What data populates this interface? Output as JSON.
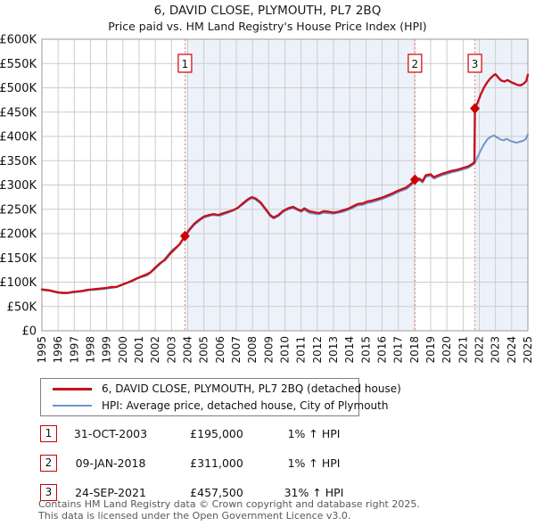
{
  "header": {
    "title": "6, DAVID CLOSE, PLYMOUTH, PL7 2BQ",
    "subtitle": "Price paid vs. HM Land Registry's House Price Index (HPI)"
  },
  "chart_data": {
    "type": "line",
    "title": "6, DAVID CLOSE, PLYMOUTH, PL7 2BQ",
    "subtitle": "Price paid vs. HM Land Registry's House Price Index (HPI)",
    "y_unit": "GBP thousands",
    "x_axis": {
      "min": 1995,
      "max": 2025,
      "tick_step": 1,
      "labels": [
        "1995",
        "1996",
        "1997",
        "1998",
        "1999",
        "2000",
        "2001",
        "2002",
        "2003",
        "2004",
        "2005",
        "2006",
        "2007",
        "2008",
        "2009",
        "2010",
        "2011",
        "2012",
        "2013",
        "2014",
        "2015",
        "2016",
        "2017",
        "2018",
        "2019",
        "2020",
        "2021",
        "2022",
        "2023",
        "2024",
        "2025"
      ]
    },
    "y_axis": {
      "min": 0,
      "max": 600,
      "tick_step": 50,
      "labels": [
        "£0",
        "£50K",
        "£100K",
        "£150K",
        "£200K",
        "£250K",
        "£300K",
        "£350K",
        "£400K",
        "£450K",
        "£500K",
        "£550K",
        "£600K"
      ]
    },
    "grid": true,
    "grid_color": "#cccccc",
    "border_color": "#9a9a9a",
    "shade_color": "#edf2fa",
    "marker_line_color": "#ee7777",
    "background_spans": [
      [
        2003.83,
        2018.03
      ],
      [
        2021.73,
        2025
      ]
    ],
    "sale_markers": [
      {
        "n": "1",
        "x": 2003.83,
        "y": 195
      },
      {
        "n": "2",
        "x": 2018.03,
        "y": 311
      },
      {
        "n": "3",
        "x": 2021.73,
        "y": 457.5
      }
    ],
    "series": [
      {
        "name": "HPI: Average price, detached house, City of Plymouth",
        "color": "#6e96c8",
        "width": 2,
        "points": [
          [
            1995,
            84
          ],
          [
            1995.5,
            82
          ],
          [
            1996,
            78
          ],
          [
            1996.5,
            77
          ],
          [
            1997,
            79
          ],
          [
            1997.5,
            81
          ],
          [
            1998,
            84
          ],
          [
            1998.5,
            85
          ],
          [
            1999,
            87
          ],
          [
            1999.5,
            89
          ],
          [
            2000,
            96
          ],
          [
            2000.5,
            101
          ],
          [
            2001,
            109
          ],
          [
            2001.5,
            114
          ],
          [
            2002,
            128
          ],
          [
            2002.5,
            144
          ],
          [
            2003,
            165
          ],
          [
            2003.5,
            177
          ],
          [
            2003.83,
            193
          ],
          [
            2004.1,
            206
          ],
          [
            2004.4,
            218
          ],
          [
            2004.7,
            226
          ],
          [
            2005,
            233
          ],
          [
            2005.5,
            238
          ],
          [
            2006,
            237
          ],
          [
            2006.5,
            243
          ],
          [
            2007,
            251
          ],
          [
            2007.4,
            260
          ],
          [
            2007.7,
            268
          ],
          [
            2007.95,
            273
          ],
          [
            2008.2,
            270
          ],
          [
            2008.5,
            262
          ],
          [
            2008.8,
            249
          ],
          [
            2009.1,
            236
          ],
          [
            2009.3,
            231
          ],
          [
            2009.6,
            236
          ],
          [
            2009.9,
            245
          ],
          [
            2010.2,
            250
          ],
          [
            2010.5,
            253
          ],
          [
            2010.8,
            248
          ],
          [
            2011,
            245
          ],
          [
            2011.2,
            249
          ],
          [
            2011.5,
            243
          ],
          [
            2011.8,
            241
          ],
          [
            2012.1,
            240
          ],
          [
            2012.4,
            243
          ],
          [
            2012.7,
            242
          ],
          [
            2013,
            241
          ],
          [
            2013.3,
            243
          ],
          [
            2013.6,
            245
          ],
          [
            2013.9,
            249
          ],
          [
            2014.2,
            253
          ],
          [
            2014.5,
            258
          ],
          [
            2014.8,
            259
          ],
          [
            2015.1,
            263
          ],
          [
            2015.4,
            265
          ],
          [
            2015.7,
            268
          ],
          [
            2016,
            271
          ],
          [
            2016.3,
            275
          ],
          [
            2016.6,
            279
          ],
          [
            2016.9,
            284
          ],
          [
            2017.2,
            288
          ],
          [
            2017.5,
            292
          ],
          [
            2017.8,
            300
          ],
          [
            2018.03,
            308
          ],
          [
            2018.3,
            310
          ],
          [
            2018.5,
            305
          ],
          [
            2018.7,
            317
          ],
          [
            2019,
            319
          ],
          [
            2019.2,
            313
          ],
          [
            2019.4,
            316
          ],
          [
            2019.7,
            320
          ],
          [
            2020,
            323
          ],
          [
            2020.3,
            326
          ],
          [
            2020.6,
            328
          ],
          [
            2021,
            332
          ],
          [
            2021.3,
            335
          ],
          [
            2021.55,
            340
          ],
          [
            2021.73,
            345
          ],
          [
            2021.9,
            358
          ],
          [
            2022.1,
            372
          ],
          [
            2022.3,
            384
          ],
          [
            2022.5,
            394
          ],
          [
            2022.7,
            399
          ],
          [
            2022.9,
            402
          ],
          [
            2023.1,
            398
          ],
          [
            2023.3,
            394
          ],
          [
            2023.5,
            392
          ],
          [
            2023.7,
            395
          ],
          [
            2023.9,
            391
          ],
          [
            2024.1,
            389
          ],
          [
            2024.3,
            387
          ],
          [
            2024.5,
            389
          ],
          [
            2024.7,
            391
          ],
          [
            2024.85,
            394
          ],
          [
            2025,
            404
          ]
        ]
      },
      {
        "name": "6, DAVID CLOSE, PLYMOUTH, PL7 2BQ (detached house)",
        "color": "#c3121e",
        "width": 2.4,
        "points": [
          [
            1995,
            85
          ],
          [
            1995.25,
            84
          ],
          [
            1995.5,
            83
          ],
          [
            1995.75,
            81
          ],
          [
            1996,
            79
          ],
          [
            1996.3,
            78
          ],
          [
            1996.6,
            78
          ],
          [
            1996.9,
            80
          ],
          [
            1997.2,
            81
          ],
          [
            1997.5,
            82
          ],
          [
            1997.8,
            84
          ],
          [
            1998.1,
            85
          ],
          [
            1998.4,
            86
          ],
          [
            1998.7,
            87
          ],
          [
            1999,
            88
          ],
          [
            1999.3,
            90
          ],
          [
            1999.6,
            90
          ],
          [
            1999.9,
            94
          ],
          [
            2000.2,
            98
          ],
          [
            2000.5,
            102
          ],
          [
            2000.8,
            107
          ],
          [
            2001.1,
            111
          ],
          [
            2001.4,
            115
          ],
          [
            2001.7,
            120
          ],
          [
            2002,
            130
          ],
          [
            2002.3,
            139
          ],
          [
            2002.6,
            146
          ],
          [
            2002.9,
            158
          ],
          [
            2003.2,
            168
          ],
          [
            2003.5,
            178
          ],
          [
            2003.83,
            195
          ],
          [
            2004.1,
            208
          ],
          [
            2004.4,
            220
          ],
          [
            2004.7,
            228
          ],
          [
            2005,
            235
          ],
          [
            2005.3,
            238
          ],
          [
            2005.6,
            240
          ],
          [
            2005.9,
            238
          ],
          [
            2006.2,
            242
          ],
          [
            2006.5,
            245
          ],
          [
            2006.8,
            248
          ],
          [
            2007.1,
            253
          ],
          [
            2007.4,
            262
          ],
          [
            2007.7,
            270
          ],
          [
            2007.95,
            275
          ],
          [
            2008.2,
            272
          ],
          [
            2008.5,
            264
          ],
          [
            2008.8,
            251
          ],
          [
            2009.1,
            238
          ],
          [
            2009.3,
            233
          ],
          [
            2009.6,
            238
          ],
          [
            2009.9,
            247
          ],
          [
            2010.2,
            252
          ],
          [
            2010.5,
            255
          ],
          [
            2010.8,
            250
          ],
          [
            2011,
            247
          ],
          [
            2011.2,
            252
          ],
          [
            2011.5,
            246
          ],
          [
            2011.8,
            244
          ],
          [
            2012.1,
            242
          ],
          [
            2012.4,
            246
          ],
          [
            2012.7,
            245
          ],
          [
            2013,
            243
          ],
          [
            2013.3,
            245
          ],
          [
            2013.6,
            248
          ],
          [
            2013.9,
            251
          ],
          [
            2014.2,
            256
          ],
          [
            2014.5,
            261
          ],
          [
            2014.8,
            262
          ],
          [
            2015.1,
            266
          ],
          [
            2015.4,
            268
          ],
          [
            2015.7,
            271
          ],
          [
            2016,
            274
          ],
          [
            2016.3,
            278
          ],
          [
            2016.6,
            282
          ],
          [
            2016.9,
            287
          ],
          [
            2017.2,
            291
          ],
          [
            2017.5,
            295
          ],
          [
            2017.8,
            303
          ],
          [
            2018.03,
            311
          ],
          [
            2018.3,
            313
          ],
          [
            2018.5,
            308
          ],
          [
            2018.7,
            320
          ],
          [
            2019,
            322
          ],
          [
            2019.2,
            316
          ],
          [
            2019.4,
            319
          ],
          [
            2019.7,
            323
          ],
          [
            2020,
            326
          ],
          [
            2020.3,
            329
          ],
          [
            2020.6,
            331
          ],
          [
            2021,
            335
          ],
          [
            2021.3,
            338
          ],
          [
            2021.55,
            343
          ],
          [
            2021.7,
            347
          ],
          [
            2021.73,
            457.5
          ],
          [
            2021.9,
            470
          ],
          [
            2022.1,
            487
          ],
          [
            2022.3,
            501
          ],
          [
            2022.5,
            512
          ],
          [
            2022.7,
            520
          ],
          [
            2022.9,
            526
          ],
          [
            2023,
            528
          ],
          [
            2023.15,
            522
          ],
          [
            2023.35,
            515
          ],
          [
            2023.55,
            513
          ],
          [
            2023.75,
            516
          ],
          [
            2023.95,
            512
          ],
          [
            2024.15,
            509
          ],
          [
            2024.35,
            506
          ],
          [
            2024.55,
            505
          ],
          [
            2024.75,
            509
          ],
          [
            2024.9,
            514
          ],
          [
            2025,
            527
          ]
        ]
      }
    ]
  },
  "legend": {
    "items": [
      {
        "label": "6, DAVID CLOSE, PLYMOUTH, PL7 2BQ (detached house)",
        "color": "#c3121e"
      },
      {
        "label": "HPI: Average price, detached house, City of Plymouth",
        "color": "#6e96c8"
      }
    ]
  },
  "transactions": [
    {
      "n": "1",
      "date": "31-OCT-2003",
      "price": "£195,000",
      "hpi": "1% ↑ HPI"
    },
    {
      "n": "2",
      "date": "09-JAN-2018",
      "price": "£311,000",
      "hpi": "1% ↑ HPI"
    },
    {
      "n": "3",
      "date": "24-SEP-2021",
      "price": "£457,500",
      "hpi": "31% ↑ HPI"
    }
  ],
  "footer": {
    "line1": "Contains HM Land Registry data © Crown copyright and database right 2025.",
    "line2": "This data is licensed under the Open Government Licence v3.0."
  }
}
